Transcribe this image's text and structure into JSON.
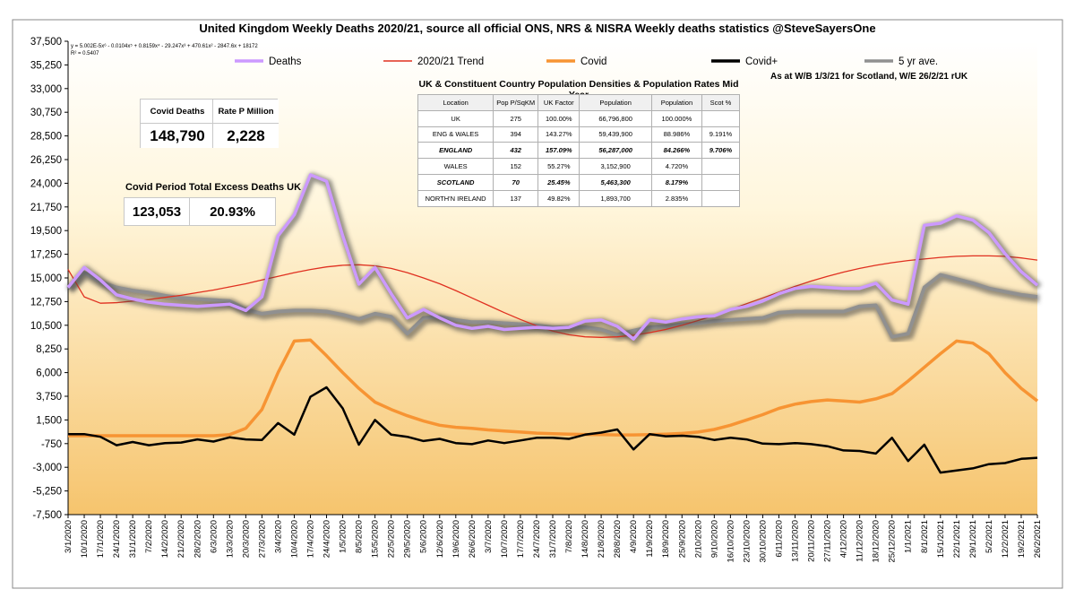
{
  "chart_data": {
    "type": "line",
    "title": "United Kingdom Weekly Deaths 2020/21, source all official ONS, NRS & NISRA Weekly deaths statistics @SteveSayersOne",
    "xlabel": "",
    "ylabel": "",
    "ylim": [
      -7500,
      37500
    ],
    "yticks": [
      "37,500",
      "35,250",
      "33,000",
      "30,750",
      "28,500",
      "26,250",
      "24,000",
      "21,750",
      "19,500",
      "17,250",
      "15,000",
      "12,750",
      "10,500",
      "8,250",
      "6,000",
      "3,750",
      "1,500",
      "-750",
      "-3,000",
      "-5,250",
      "-7,500"
    ],
    "ytick_values": [
      37500,
      35250,
      33000,
      30750,
      28500,
      26250,
      24000,
      21750,
      19500,
      17250,
      15000,
      12750,
      10500,
      8250,
      6000,
      3750,
      1500,
      -750,
      -3000,
      -5250,
      -7500
    ],
    "x": [
      "3/1/2020",
      "10/1/2020",
      "17/1/2020",
      "24/1/2020",
      "31/1/2020",
      "7/2/2020",
      "14/2/2020",
      "21/2/2020",
      "28/2/2020",
      "6/3/2020",
      "13/3/2020",
      "20/3/2020",
      "27/3/2020",
      "3/4/2020",
      "10/4/2020",
      "17/4/2020",
      "24/4/2020",
      "1/5/2020",
      "8/5/2020",
      "15/5/2020",
      "22/5/2020",
      "29/5/2020",
      "5/6/2020",
      "12/6/2020",
      "19/6/2020",
      "26/6/2020",
      "3/7/2020",
      "10/7/2020",
      "17/7/2020",
      "24/7/2020",
      "31/7/2020",
      "7/8/2020",
      "14/8/2020",
      "21/8/2020",
      "28/8/2020",
      "4/9/2020",
      "11/9/2020",
      "18/9/2020",
      "25/9/2020",
      "2/10/2020",
      "9/10/2020",
      "16/10/2020",
      "23/10/2020",
      "30/10/2020",
      "6/11/2020",
      "13/11/2020",
      "20/11/2020",
      "27/11/2020",
      "4/12/2020",
      "11/12/2020",
      "18/12/2020",
      "25/12/2020",
      "1/1/2021",
      "8/1/2021",
      "15/1/2021",
      "22/1/2021",
      "29/1/2021",
      "5/2/2021",
      "12/2/2021",
      "19/2/2021",
      "26/2/2021"
    ],
    "series": [
      {
        "name": "Deaths",
        "color": "#cc99ff",
        "values": [
          14100,
          16000,
          14800,
          13400,
          13000,
          12700,
          12500,
          12400,
          12300,
          12400,
          12500,
          11900,
          13200,
          19000,
          21000,
          24800,
          24200,
          19000,
          14400,
          16000,
          13500,
          11200,
          12000,
          11200,
          10500,
          10200,
          10400,
          10100,
          10200,
          10300,
          10200,
          10300,
          10900,
          11000,
          10400,
          9200,
          11000,
          10800,
          11100,
          11300,
          11400,
          12000,
          12300,
          12800,
          13500,
          14000,
          14200,
          14100,
          14000,
          14000,
          14500,
          12900,
          12500,
          20000,
          20200,
          20900,
          20500,
          19300,
          17300,
          15600,
          14300
        ]
      },
      {
        "name": "2020/21 Trend",
        "color": "#e03020",
        "values": [
          15800,
          13200,
          12600,
          12650,
          12800,
          12950,
          13150,
          13350,
          13600,
          13850,
          14150,
          14450,
          14800,
          15150,
          15500,
          15800,
          16050,
          16200,
          16250,
          16150,
          15900,
          15500,
          15000,
          14450,
          13800,
          13100,
          12400,
          11700,
          11050,
          10450,
          9950,
          9600,
          9400,
          9350,
          9400,
          9550,
          9800,
          10100,
          10500,
          10950,
          11450,
          12000,
          12550,
          13100,
          13650,
          14200,
          14700,
          15150,
          15550,
          15900,
          16200,
          16450,
          16650,
          16800,
          16950,
          17050,
          17100,
          17100,
          17050,
          16900,
          16700
        ]
      },
      {
        "name": "Covid",
        "color": "#f79433",
        "values": [
          0,
          0,
          0,
          0,
          0,
          0,
          0,
          0,
          0,
          0,
          100,
          700,
          2500,
          6000,
          9000,
          9100,
          7600,
          6000,
          4500,
          3200,
          2500,
          1900,
          1400,
          1000,
          800,
          700,
          550,
          450,
          350,
          250,
          200,
          150,
          120,
          100,
          80,
          80,
          100,
          150,
          220,
          350,
          600,
          1000,
          1500,
          2000,
          2600,
          3000,
          3250,
          3400,
          3300,
          3200,
          3500,
          4000,
          5200,
          6500,
          7800,
          9000,
          8800,
          7800,
          6000,
          4500,
          3300
        ]
      },
      {
        "name": "Covid+",
        "color": "#000000",
        "values": [
          150,
          150,
          -100,
          -900,
          -600,
          -900,
          -700,
          -650,
          -350,
          -550,
          -150,
          -350,
          -400,
          1200,
          100,
          3700,
          4600,
          2600,
          -850,
          1500,
          100,
          -100,
          -500,
          -300,
          -700,
          -800,
          -450,
          -700,
          -450,
          -200,
          -200,
          -300,
          100,
          300,
          600,
          -1300,
          150,
          -50,
          0,
          -100,
          -400,
          -200,
          -350,
          -750,
          -800,
          -700,
          -800,
          -1000,
          -1400,
          -1450,
          -1700,
          -200,
          -2400,
          -850,
          -3500,
          -3300,
          -3100,
          -2700,
          -2600,
          -2200,
          -2100
        ]
      },
      {
        "name": "5 yr ave.",
        "color": "#909090",
        "values": [
          14000,
          15500,
          14600,
          14100,
          13800,
          13600,
          13300,
          13100,
          13000,
          12900,
          12800,
          12000,
          11600,
          11800,
          11900,
          11900,
          11800,
          11500,
          11100,
          11600,
          11300,
          9700,
          11200,
          11300,
          11000,
          10800,
          10800,
          10700,
          10600,
          10500,
          10300,
          10300,
          10300,
          10100,
          9600,
          10000,
          10300,
          10400,
          10600,
          10700,
          10900,
          11000,
          11100,
          11200,
          11700,
          11800,
          11800,
          11800,
          11800,
          12300,
          12400,
          9400,
          9700,
          14100,
          15300,
          14900,
          14500,
          14000,
          13700,
          13400,
          13200
        ]
      }
    ],
    "legend_position": "top",
    "grid": false,
    "annotation_equation": "y = 5.002E-5x⁶ - 0.0104x⁵ + 0.8159x⁴ - 29.247x³ + 470.61x² - 2847.6x + 18172",
    "annotation_r2": "R² = 0.5407",
    "annotation_asat": "As at W/B 1/3/21 for Scotland, W/E 26/2/21 rUK"
  },
  "summary": {
    "covid_deaths_label": "Covid Deaths",
    "covid_deaths_value": "148,790",
    "rate_label": "Rate P Million",
    "rate_value": "2,228",
    "excess_label": "Covid Period Total Excess Deaths UK",
    "excess_value": "123,053",
    "excess_pct": "20.93%"
  },
  "population_table": {
    "title": "UK & Constituent Country Population Densities & Population Rates Mid Year",
    "headers": [
      "Location",
      "Pop P/SqKM",
      "UK Factor",
      "Population",
      "Population",
      "Scot %"
    ],
    "rows": [
      {
        "emphasis": false,
        "cells": [
          "UK",
          "275",
          "100.00%",
          "66,796,800",
          "100.000%",
          ""
        ]
      },
      {
        "emphasis": false,
        "cells": [
          "ENG & WALES",
          "394",
          "143.27%",
          "59,439,900",
          "88.986%",
          "9.191%"
        ]
      },
      {
        "emphasis": true,
        "cells": [
          "ENGLAND",
          "432",
          "157.09%",
          "56,287,000",
          "84.266%",
          "9.706%"
        ]
      },
      {
        "emphasis": false,
        "cells": [
          "WALES",
          "152",
          "55.27%",
          "3,152,900",
          "4.720%",
          ""
        ]
      },
      {
        "emphasis": true,
        "cells": [
          "SCOTLAND",
          "70",
          "25.45%",
          "5,463,300",
          "8.179%",
          ""
        ]
      },
      {
        "emphasis": false,
        "cells": [
          "NORTH'N IRELAND",
          "137",
          "49.82%",
          "1,893,700",
          "2.835%",
          ""
        ]
      }
    ]
  }
}
